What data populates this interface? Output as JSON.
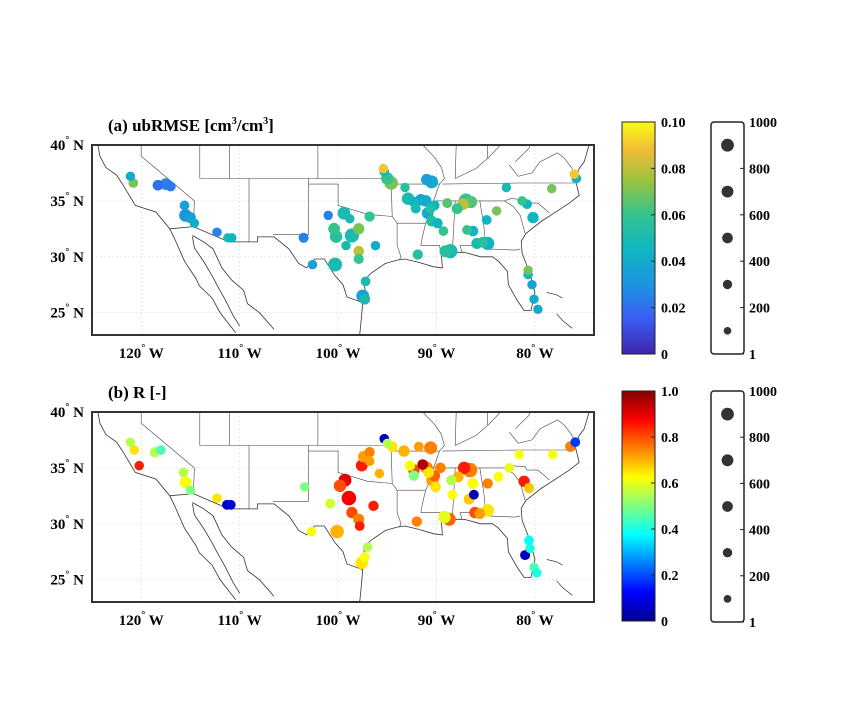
{
  "panels": [
    {
      "title": "(a) ubRMSE [cm³/cm³]",
      "colormap": "parula",
      "lat_ticks": [
        "40",
        "35",
        "30",
        "25"
      ],
      "lat_suffix": "N",
      "lon_ticks": [
        "120",
        "110",
        "100",
        "90",
        "80"
      ],
      "lon_suffix": "W",
      "colorbar_ticks": [
        "0.10",
        "0.08",
        "0.06",
        "0.04",
        "0.02",
        "0"
      ],
      "size_legend_ticks": [
        "1000",
        "800",
        "600",
        "400",
        "200",
        "1"
      ]
    },
    {
      "title": "(b) R [-]",
      "colormap": "jet",
      "lat_ticks": [
        "40",
        "35",
        "30",
        "25"
      ],
      "lat_suffix": "N",
      "lon_ticks": [
        "120",
        "110",
        "100",
        "90",
        "80"
      ],
      "lon_suffix": "W",
      "colorbar_ticks": [
        "1.0",
        "0.8",
        "0.6",
        "0.4",
        "0.2",
        "0"
      ],
      "size_legend_ticks": [
        "1000",
        "800",
        "600",
        "400",
        "200",
        "1"
      ]
    }
  ],
  "chart_data": [
    {
      "type": "scatter",
      "title": "(a) ubRMSE [cm³/cm³]",
      "xlabel": "",
      "ylabel": "",
      "xlim": [
        -125,
        -74
      ],
      "ylim": [
        23,
        40
      ],
      "color_range": [
        0,
        0.1
      ],
      "size_range": [
        1,
        1000
      ],
      "points": [
        [
          -121.1,
          37.2,
          0.04,
          80
        ],
        [
          -120.8,
          36.6,
          0.07,
          90
        ],
        [
          -118.3,
          36.4,
          0.02,
          120
        ],
        [
          -117.5,
          36.5,
          0.025,
          160
        ],
        [
          -117.0,
          36.3,
          0.022,
          100
        ],
        [
          -115.6,
          34.6,
          0.035,
          90
        ],
        [
          -115.5,
          33.7,
          0.03,
          220
        ],
        [
          -115.0,
          33.5,
          0.035,
          130
        ],
        [
          -114.6,
          33.0,
          0.04,
          80
        ],
        [
          -112.3,
          32.2,
          0.025,
          80
        ],
        [
          -111.2,
          31.7,
          0.05,
          80
        ],
        [
          -110.8,
          31.7,
          0.045,
          80
        ],
        [
          -103.5,
          31.7,
          0.025,
          100
        ],
        [
          -102.6,
          29.3,
          0.035,
          80
        ],
        [
          -101.0,
          33.7,
          0.025,
          80
        ],
        [
          -100.4,
          32.5,
          0.06,
          170
        ],
        [
          -100.2,
          31.8,
          0.055,
          200
        ],
        [
          -100.3,
          29.3,
          0.05,
          280
        ],
        [
          -99.4,
          33.9,
          0.05,
          220
        ],
        [
          -98.6,
          31.9,
          0.05,
          300
        ],
        [
          -97.9,
          32.5,
          0.07,
          150
        ],
        [
          -97.9,
          30.5,
          0.08,
          120
        ],
        [
          -97.9,
          29.8,
          0.06,
          100
        ],
        [
          -97.5,
          26.5,
          0.035,
          220
        ],
        [
          -97.3,
          26.2,
          0.05,
          130
        ],
        [
          -97.2,
          27.8,
          0.05,
          90
        ],
        [
          -96.8,
          33.6,
          0.06,
          110
        ],
        [
          -96.2,
          31.0,
          0.04,
          80
        ],
        [
          -95.0,
          37.0,
          0.06,
          200
        ],
        [
          -94.6,
          36.6,
          0.07,
          260
        ],
        [
          -95.3,
          37.6,
          0.05,
          90
        ],
        [
          -93.2,
          36.2,
          0.055,
          80
        ],
        [
          -92.9,
          35.2,
          0.05,
          200
        ],
        [
          -92.3,
          34.9,
          0.045,
          120
        ],
        [
          -92.1,
          34.3,
          0.05,
          90
        ],
        [
          -91.9,
          30.2,
          0.055,
          110
        ],
        [
          -91.6,
          35.1,
          0.035,
          160
        ],
        [
          -91.1,
          35.0,
          0.04,
          160
        ],
        [
          -91.0,
          36.9,
          0.035,
          150
        ],
        [
          -90.5,
          36.7,
          0.04,
          230
        ],
        [
          -90.6,
          34.3,
          0.055,
          90
        ],
        [
          -90.9,
          33.9,
          0.04,
          170
        ],
        [
          -90.5,
          33.2,
          0.055,
          130
        ],
        [
          -90.2,
          34.6,
          0.045,
          100
        ],
        [
          -89.9,
          33.0,
          0.045,
          110
        ],
        [
          -89.3,
          32.3,
          0.06,
          90
        ],
        [
          -89.1,
          30.5,
          0.055,
          180
        ],
        [
          -88.6,
          30.5,
          0.05,
          300
        ],
        [
          -88.9,
          34.8,
          0.065,
          100
        ],
        [
          -87.9,
          34.3,
          0.06,
          130
        ],
        [
          -87.3,
          34.7,
          0.08,
          160
        ],
        [
          -87.0,
          35.0,
          0.06,
          330
        ],
        [
          -86.5,
          34.9,
          0.065,
          190
        ],
        [
          -86.9,
          32.4,
          0.06,
          90
        ],
        [
          -86.3,
          32.3,
          0.045,
          120
        ],
        [
          -85.9,
          31.2,
          0.05,
          140
        ],
        [
          -85.3,
          31.3,
          0.055,
          120
        ],
        [
          -84.8,
          31.2,
          0.045,
          240
        ],
        [
          -84.9,
          33.3,
          0.045,
          90
        ],
        [
          -83.9,
          34.1,
          0.07,
          80
        ],
        [
          -82.9,
          36.2,
          0.05,
          80
        ],
        [
          -81.3,
          35.0,
          0.06,
          80
        ],
        [
          -80.8,
          34.7,
          0.045,
          90
        ],
        [
          -80.2,
          33.5,
          0.045,
          150
        ],
        [
          -80.7,
          28.4,
          0.045,
          80
        ],
        [
          -80.7,
          28.8,
          0.07,
          80
        ],
        [
          -80.3,
          27.5,
          0.035,
          80
        ],
        [
          -80.1,
          26.2,
          0.04,
          80
        ],
        [
          -79.7,
          25.3,
          0.04,
          80
        ],
        [
          -78.3,
          36.1,
          0.07,
          80
        ],
        [
          -76.0,
          37.4,
          0.09,
          80
        ],
        [
          -75.8,
          37.0,
          0.045,
          90
        ],
        [
          -95.4,
          37.9,
          0.09,
          80
        ],
        [
          -98.8,
          33.4,
          0.05,
          80
        ],
        [
          -99.2,
          31.0,
          0.05,
          80
        ]
      ]
    },
    {
      "type": "scatter",
      "title": "(b) R [-]",
      "xlabel": "",
      "ylabel": "",
      "xlim": [
        -125,
        -74
      ],
      "ylim": [
        23,
        40
      ],
      "color_range": [
        0,
        1.0
      ],
      "size_range": [
        1,
        1000
      ],
      "points": [
        [
          -121.1,
          37.3,
          0.55,
          80
        ],
        [
          -120.7,
          36.6,
          0.65,
          90
        ],
        [
          -120.2,
          35.2,
          0.85,
          80
        ],
        [
          -118.6,
          36.4,
          0.55,
          110
        ],
        [
          -118.0,
          36.6,
          0.45,
          90
        ],
        [
          -115.7,
          34.6,
          0.55,
          90
        ],
        [
          -115.5,
          33.7,
          0.62,
          170
        ],
        [
          -115.0,
          33.0,
          0.5,
          80
        ],
        [
          -112.3,
          32.3,
          0.65,
          80
        ],
        [
          -111.3,
          31.7,
          0.05,
          90
        ],
        [
          -110.9,
          31.7,
          0.08,
          90
        ],
        [
          -103.4,
          33.3,
          0.5,
          80
        ],
        [
          -102.7,
          29.3,
          0.62,
          90
        ],
        [
          -100.8,
          31.8,
          0.58,
          100
        ],
        [
          -100.1,
          29.3,
          0.7,
          260
        ],
        [
          -99.8,
          33.4,
          0.8,
          200
        ],
        [
          -99.3,
          33.9,
          0.9,
          220
        ],
        [
          -98.9,
          32.3,
          0.88,
          320
        ],
        [
          -98.6,
          31.0,
          0.8,
          150
        ],
        [
          -97.9,
          30.4,
          0.75,
          140
        ],
        [
          -97.8,
          29.8,
          0.85,
          90
        ],
        [
          -97.6,
          26.5,
          0.65,
          200
        ],
        [
          -97.3,
          27.0,
          0.62,
          100
        ],
        [
          -97.0,
          27.9,
          0.55,
          80
        ],
        [
          -96.4,
          31.6,
          0.85,
          110
        ],
        [
          -96.8,
          36.4,
          0.75,
          110
        ],
        [
          -97.4,
          36.0,
          0.72,
          150
        ],
        [
          -97.6,
          35.2,
          0.85,
          170
        ],
        [
          -96.8,
          35.6,
          0.72,
          90
        ],
        [
          -95.3,
          37.6,
          0.05,
          90
        ],
        [
          -94.5,
          36.9,
          0.65,
          120
        ],
        [
          -93.3,
          36.5,
          0.7,
          150
        ],
        [
          -92.7,
          35.2,
          0.62,
          110
        ],
        [
          -92.3,
          34.8,
          0.8,
          160
        ],
        [
          -92.3,
          34.3,
          0.5,
          110
        ],
        [
          -92.0,
          30.2,
          0.75,
          110
        ],
        [
          -91.8,
          36.9,
          0.72,
          90
        ],
        [
          -91.4,
          35.3,
          0.95,
          120
        ],
        [
          -91.0,
          35.0,
          0.75,
          200
        ],
        [
          -90.6,
          36.8,
          0.75,
          230
        ],
        [
          -90.8,
          34.6,
          0.65,
          130
        ],
        [
          -90.4,
          33.9,
          0.72,
          200
        ],
        [
          -90.1,
          33.3,
          0.65,
          120
        ],
        [
          -90.2,
          34.3,
          0.78,
          140
        ],
        [
          -89.6,
          35.0,
          0.75,
          120
        ],
        [
          -89.2,
          30.6,
          0.6,
          200
        ],
        [
          -88.7,
          30.4,
          0.78,
          230
        ],
        [
          -88.5,
          33.9,
          0.55,
          110
        ],
        [
          -88.4,
          32.6,
          0.62,
          90
        ],
        [
          -87.8,
          34.2,
          0.7,
          130
        ],
        [
          -87.2,
          35.0,
          0.85,
          200
        ],
        [
          -86.6,
          34.8,
          0.75,
          330
        ],
        [
          -86.3,
          33.6,
          0.62,
          130
        ],
        [
          -86.2,
          32.6,
          0.05,
          90
        ],
        [
          -86.7,
          32.2,
          0.68,
          120
        ],
        [
          -86.1,
          31.0,
          0.8,
          150
        ],
        [
          -85.6,
          30.9,
          0.72,
          130
        ],
        [
          -84.8,
          31.2,
          0.65,
          210
        ],
        [
          -84.8,
          33.6,
          0.75,
          110
        ],
        [
          -83.7,
          34.2,
          0.62,
          90
        ],
        [
          -82.6,
          35.0,
          0.6,
          80
        ],
        [
          -81.6,
          36.2,
          0.62,
          80
        ],
        [
          -81.1,
          33.8,
          0.85,
          150
        ],
        [
          -80.6,
          33.2,
          0.68,
          110
        ],
        [
          -80.6,
          28.5,
          0.38,
          90
        ],
        [
          -81.0,
          27.2,
          0.05,
          100
        ],
        [
          -80.5,
          27.8,
          0.4,
          80
        ],
        [
          -80.1,
          26.1,
          0.45,
          80
        ],
        [
          -79.8,
          25.6,
          0.4,
          80
        ],
        [
          -78.2,
          36.2,
          0.62,
          80
        ],
        [
          -76.4,
          36.9,
          0.75,
          120
        ],
        [
          -75.9,
          37.3,
          0.18,
          90
        ],
        [
          -95.0,
          37.2,
          0.55,
          80
        ],
        [
          -95.8,
          34.5,
          0.7,
          80
        ]
      ]
    }
  ]
}
